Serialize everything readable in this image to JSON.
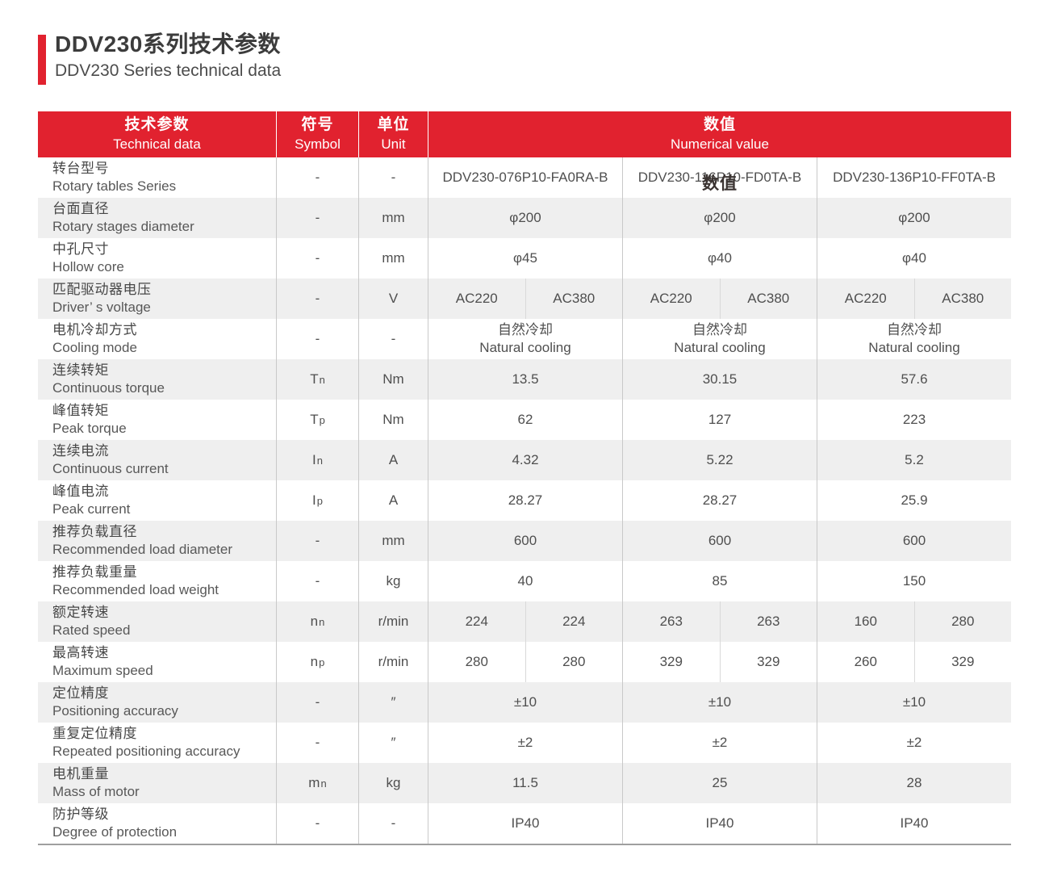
{
  "page": {
    "title_zh": "DDV230系列技术参数",
    "title_en": "DDV230 Series technical data"
  },
  "colors": {
    "accent_red": "#e1222f",
    "row_alt": "#efefef"
  },
  "table": {
    "header": {
      "col1_zh": "技术参数",
      "col1_en": "Technical data",
      "col2_zh": "符号",
      "col2_en": "Symbol",
      "col3_zh": "单位",
      "col3_en": "Unit",
      "col4_zh": "数值",
      "col4_en": "Numerical value"
    },
    "rows": [
      {
        "zh": "转台型号",
        "en": "Rotary tables Series",
        "symbol": "-",
        "sub": "",
        "unit": "-",
        "layout": "three",
        "cells": [
          "DDV230-076P10-FA0RA-B",
          "DDV230-116P10-FD0TA-B",
          "DDV230-136P10-FF0TA-B"
        ],
        "overlay": {
          "cell": 1,
          "text": "数值"
        }
      },
      {
        "zh": "台面直径",
        "en": "Rotary stages diameter",
        "symbol": "-",
        "sub": "",
        "unit": "mm",
        "layout": "three",
        "cells": [
          "φ200",
          "φ200",
          "φ200"
        ]
      },
      {
        "zh": "中孔尺寸",
        "en": "Hollow core",
        "symbol": "-",
        "sub": "",
        "unit": "mm",
        "layout": "three",
        "cells": [
          "φ45",
          "φ40",
          "φ40"
        ]
      },
      {
        "zh": "匹配驱动器电压",
        "en": "Driver’ s voltage",
        "symbol": "-",
        "sub": "",
        "unit": "V",
        "layout": "six",
        "cells": [
          "AC220",
          "AC380",
          "AC220",
          "AC380",
          "AC220",
          "AC380"
        ]
      },
      {
        "zh": "电机冷却方式",
        "en": "Cooling mode",
        "symbol": "-",
        "sub": "",
        "unit": "-",
        "layout": "three",
        "cells": [
          [
            "自然冷却",
            "Natural cooling"
          ],
          [
            "自然冷却",
            "Natural cooling"
          ],
          [
            "自然冷却",
            "Natural cooling"
          ]
        ]
      },
      {
        "zh": "连续转矩",
        "en": "Continuous torque",
        "symbol": "T",
        "sub": "n",
        "unit": "Nm",
        "layout": "three",
        "cells": [
          "13.5",
          "30.15",
          "57.6"
        ]
      },
      {
        "zh": "峰值转矩",
        "en": "Peak torque",
        "symbol": "T",
        "sub": "p",
        "unit": "Nm",
        "layout": "three",
        "cells": [
          "62",
          "127",
          "223"
        ]
      },
      {
        "zh": "连续电流",
        "en": "Continuous current",
        "symbol": "I",
        "sub": "n",
        "unit": "A",
        "layout": "three",
        "cells": [
          "4.32",
          "5.22",
          "5.2"
        ]
      },
      {
        "zh": "峰值电流",
        "en": "Peak current",
        "symbol": "I",
        "sub": "p",
        "unit": "A",
        "layout": "three",
        "cells": [
          "28.27",
          "28.27",
          "25.9"
        ]
      },
      {
        "zh": "推荐负载直径",
        "en": "Recommended load diameter",
        "symbol": "-",
        "sub": "",
        "unit": "mm",
        "layout": "three",
        "cells": [
          "600",
          "600",
          "600"
        ]
      },
      {
        "zh": "推荐负载重量",
        "en": "Recommended load weight",
        "symbol": "-",
        "sub": "",
        "unit": "kg",
        "layout": "three",
        "cells": [
          "40",
          "85",
          "150"
        ]
      },
      {
        "zh": "额定转速",
        "en": "Rated speed",
        "symbol": "n",
        "sub": "n",
        "unit": "r/min",
        "layout": "six",
        "cells": [
          "224",
          "224",
          "263",
          "263",
          "160",
          "280"
        ]
      },
      {
        "zh": "最高转速",
        "en": "Maximum speed",
        "symbol": "n",
        "sub": "p",
        "unit": "r/min",
        "layout": "six",
        "cells": [
          "280",
          "280",
          "329",
          "329",
          "260",
          "329"
        ]
      },
      {
        "zh": "定位精度",
        "en": "Positioning accuracy",
        "symbol": "-",
        "sub": "",
        "unit": "″",
        "layout": "three",
        "cells": [
          "±10",
          "±10",
          "±10"
        ]
      },
      {
        "zh": "重复定位精度",
        "en": "Repeated positioning accuracy",
        "symbol": "-",
        "sub": "",
        "unit": "″",
        "layout": "three",
        "cells": [
          "±2",
          "±2",
          "±2"
        ]
      },
      {
        "zh": "电机重量",
        "en": "Mass of motor",
        "symbol": "m",
        "sub": "n",
        "unit": "kg",
        "layout": "three",
        "cells": [
          "11.5",
          "25",
          "28"
        ]
      },
      {
        "zh": "防护等级",
        "en": "Degree of protection",
        "symbol": "-",
        "sub": "",
        "unit": "-",
        "layout": "three",
        "cells": [
          "IP40",
          "IP40",
          "IP40"
        ]
      }
    ]
  }
}
